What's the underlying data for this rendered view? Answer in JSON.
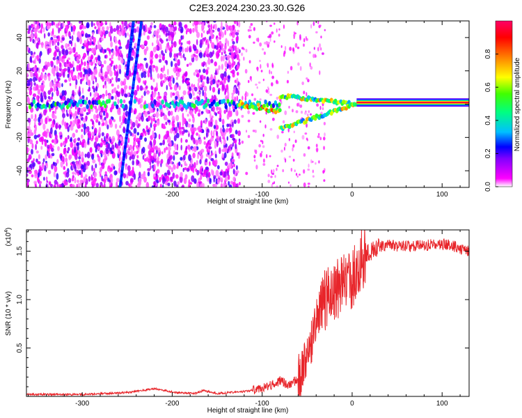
{
  "page_title": "C2E3.2024.230.23.30.G26",
  "chart_data": [
    {
      "type": "heatmap",
      "description_of_content": "spectrogram",
      "xlabel": "Height of straight line (km)",
      "ylabel": "Frequency (Hz)",
      "xlim": [
        -362,
        130
      ],
      "ylim": [
        -50,
        50
      ],
      "xticks": [
        -300,
        -200,
        -100,
        0,
        100
      ],
      "yticks": [
        -40,
        -20,
        0,
        20,
        40
      ],
      "xtick_labels": [
        "-300",
        "-200",
        "-100",
        "0",
        "100"
      ],
      "ytick_labels": [
        "-40",
        "-20",
        "0",
        "20",
        "40"
      ],
      "colorbar": {
        "label": "Normalized spectral amplitude",
        "range": [
          0.0,
          1.0
        ],
        "ticks": [
          0.0,
          0.2,
          0.4,
          0.6,
          0.8
        ],
        "tick_labels": [
          "0.0",
          "0.2",
          "0.4",
          "0.6",
          "0.8"
        ],
        "colors": [
          "#ffffff",
          "#ff00ff",
          "#8000ff",
          "#0000ff",
          "#00c0ff",
          "#00ff80",
          "#40ff00",
          "#ffff00",
          "#ff8000",
          "#ff0000",
          "#ff0066"
        ]
      },
      "features": {
        "carrier_band": {
          "x": [
            -362,
            130
          ],
          "freq_hz": 0
        },
        "wide_noise_region": {
          "x": [
            -362,
            -125
          ]
        },
        "diagonal_lines": [
          {
            "x": [
              -258,
              -234
            ],
            "freq_hz": [
              -50,
              50
            ]
          },
          {
            "x": [
              -250,
              -243
            ],
            "freq_hz": [
              18,
              50
            ]
          }
        ],
        "split_region": {
          "x": [
            -80,
            5
          ],
          "upper_freq_hz": [
            5,
            0
          ],
          "lower_freq_hz": [
            -15,
            0
          ]
        },
        "strong_tone": {
          "x": [
            5,
            130
          ],
          "freq_hz": 1
        }
      }
    },
    {
      "type": "line",
      "xlabel": "Height of straight line (km)",
      "ylabel": "SNR (10 * v/v)",
      "y_multiplier_label": "(x10",
      "y_multiplier_exponent": "4",
      "xlim": [
        -362,
        130
      ],
      "ylim": [
        0,
        1.72
      ],
      "xticks": [
        -300,
        -200,
        -100,
        0,
        100
      ],
      "yticks": [
        0.5,
        1.0,
        1.5
      ],
      "xtick_labels": [
        "-300",
        "-200",
        "-100",
        "0",
        "100"
      ],
      "ytick_labels": [
        "0.5",
        "1.0",
        "1.5"
      ],
      "series_color": "#e8252a",
      "series": [
        {
          "x": [
            -362,
            -300,
            -250,
            -220,
            -195,
            -175,
            -165,
            -150,
            -120,
            -100,
            -90,
            -80,
            -70,
            -60,
            -50,
            -45,
            -40,
            -35,
            -30,
            -25,
            -20,
            -15,
            -10,
            -5,
            0,
            10,
            20,
            30,
            40,
            60,
            80,
            100,
            110,
            120,
            130
          ],
          "y": [
            0.02,
            0.02,
            0.04,
            0.08,
            0.04,
            0.03,
            0.06,
            0.03,
            0.05,
            0.08,
            0.12,
            0.16,
            0.12,
            0.18,
            0.35,
            0.55,
            0.75,
            0.9,
            1.0,
            1.05,
            1.1,
            1.12,
            1.15,
            1.18,
            1.22,
            1.4,
            1.5,
            1.55,
            1.56,
            1.55,
            1.56,
            1.57,
            1.56,
            1.53,
            1.5
          ]
        }
      ]
    }
  ]
}
